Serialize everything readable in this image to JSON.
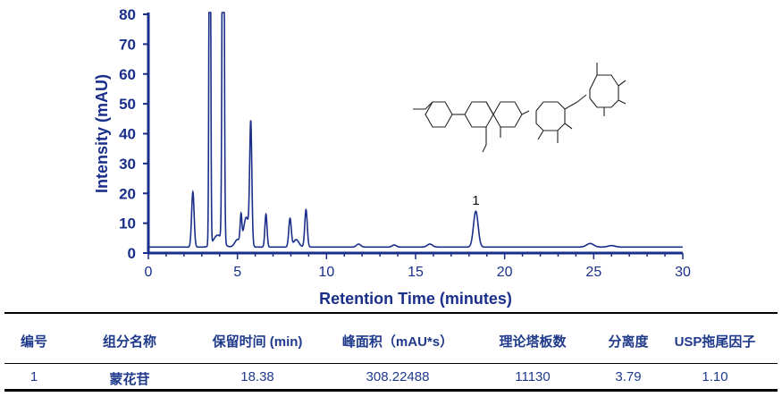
{
  "chart_data": {
    "type": "line",
    "xlabel": "Retention Time (minutes)",
    "ylabel": "Intensity (mAU)",
    "xlim": [
      0,
      30
    ],
    "ylim": [
      0,
      80
    ],
    "xticks": [
      0,
      5,
      10,
      15,
      20,
      25,
      30
    ],
    "yticks": [
      0,
      10,
      20,
      30,
      40,
      50,
      60,
      70,
      80
    ],
    "grid": false,
    "line_color": "#1a2f8a",
    "baseline": 2,
    "peaks": [
      {
        "t": 2.5,
        "height": 18.5,
        "width": 0.07
      },
      {
        "t": 3.45,
        "height": 200,
        "width": 0.04
      },
      {
        "t": 3.9,
        "height": 4,
        "width": 0.25
      },
      {
        "t": 4.2,
        "height": 200,
        "width": 0.05
      },
      {
        "t": 5.0,
        "height": 2.5,
        "width": 0.15
      },
      {
        "t": 5.2,
        "height": 9,
        "width": 0.05
      },
      {
        "t": 5.5,
        "height": 10,
        "width": 0.15
      },
      {
        "t": 5.75,
        "height": 40,
        "width": 0.06
      },
      {
        "t": 6.6,
        "height": 11,
        "width": 0.06
      },
      {
        "t": 7.95,
        "height": 9.5,
        "width": 0.07
      },
      {
        "t": 8.3,
        "height": 2.5,
        "width": 0.15
      },
      {
        "t": 8.85,
        "height": 12.5,
        "width": 0.07
      },
      {
        "t": 11.8,
        "height": 1,
        "width": 0.12
      },
      {
        "t": 13.8,
        "height": 0.7,
        "width": 0.12
      },
      {
        "t": 15.8,
        "height": 1,
        "width": 0.15
      },
      {
        "t": 18.38,
        "height": 12,
        "width": 0.13
      },
      {
        "t": 24.8,
        "height": 1.2,
        "width": 0.2
      },
      {
        "t": 26.0,
        "height": 0.5,
        "width": 0.2
      }
    ],
    "annotations": [
      {
        "label": "1",
        "t": 18.38
      }
    ]
  },
  "table": {
    "headers": [
      "编号",
      "组分名称",
      "保留时间 (min)",
      "峰面积（mAU*s）",
      "理论塔板数",
      "分离度",
      "USP拖尾因子"
    ],
    "rows": [
      [
        "1",
        "蒙花苷",
        "18.38",
        "308.22488",
        "11130",
        "3.79",
        "1.10"
      ]
    ]
  }
}
